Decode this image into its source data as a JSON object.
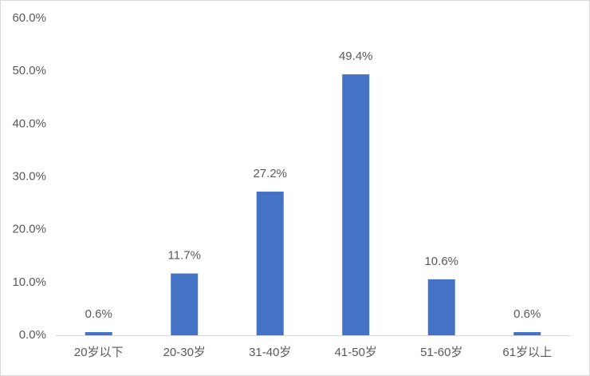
{
  "chart_data": {
    "type": "bar",
    "categories": [
      "20岁以下",
      "20-30岁",
      "31-40岁",
      "41-50岁",
      "51-60岁",
      "61岁以上"
    ],
    "values": [
      0.6,
      11.7,
      27.2,
      49.4,
      10.6,
      0.6
    ],
    "value_labels": [
      "0.6%",
      "11.7%",
      "27.2%",
      "49.4%",
      "10.6%",
      "0.6%"
    ],
    "color": "#4472c4",
    "ylim": [
      0,
      60
    ],
    "yticks": [
      {
        "value": 0,
        "label": "0.0%"
      },
      {
        "value": 10,
        "label": "10.0%"
      },
      {
        "value": 20,
        "label": "20.0%"
      },
      {
        "value": 30,
        "label": "30.0%"
      },
      {
        "value": 40,
        "label": "40.0%"
      },
      {
        "value": 50,
        "label": "50.0%"
      },
      {
        "value": 60,
        "label": "60.0%"
      }
    ],
    "grid": false
  }
}
